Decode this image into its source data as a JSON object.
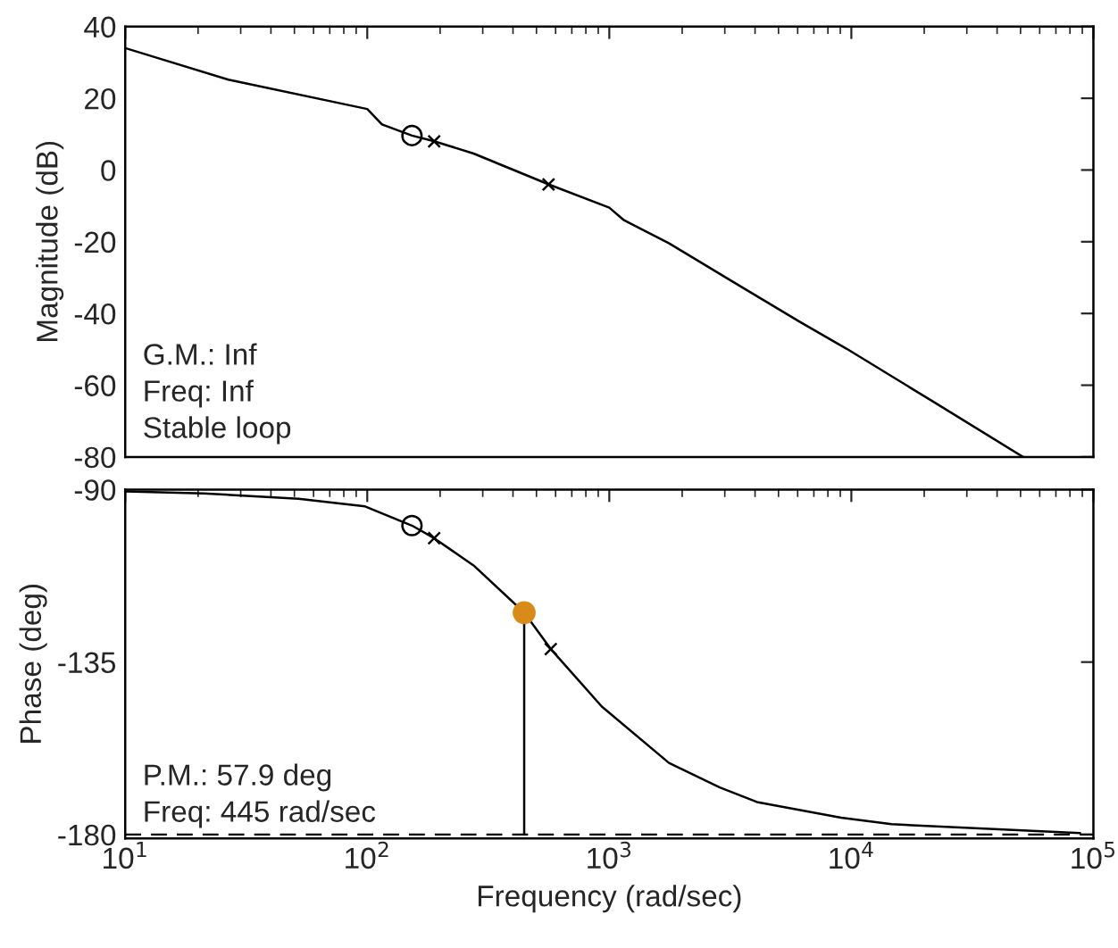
{
  "chart_data": [
    {
      "type": "line",
      "ylabel": "Magnitude (dB)",
      "log": "x",
      "xlim": [
        10,
        100000
      ],
      "ylim": [
        -80,
        40
      ],
      "xticks": [
        10,
        100,
        1000,
        10000,
        100000
      ],
      "yticks": [
        -80,
        -60,
        -40,
        -20,
        0,
        20,
        40
      ],
      "tick_labels": "y",
      "grid": false,
      "legend": false,
      "annotations": [
        "G.M.: Inf",
        "Freq: Inf",
        "Stable loop"
      ],
      "series": [
        {
          "color": "#000000",
          "marker": "none",
          "line_style": "solid",
          "x": [
            10,
            26.7,
            100,
            115,
            153,
            189,
            275,
            561,
            1000,
            1150,
            1760,
            3320,
            6110,
            9540,
            22300,
            51200
          ],
          "values": [
            34,
            25.2,
            17,
            12.7,
            9.6,
            8,
            4.6,
            -4,
            -10.5,
            -14,
            -20.4,
            -31.6,
            -42.3,
            -49.8,
            -65,
            -80
          ]
        },
        {
          "type": "scatter",
          "color": "#000000",
          "marker": "circle",
          "x": [
            153
          ],
          "values": [
            9.6
          ]
        },
        {
          "type": "scatter",
          "color": "#000000",
          "marker": "cross",
          "x": [
            189,
            561
          ],
          "values": [
            8,
            -4
          ]
        }
      ]
    },
    {
      "type": "line",
      "xlabel": "Frequency (rad/sec)",
      "ylabel": "Phase (deg)",
      "log": "x",
      "xlim": [
        10,
        100000
      ],
      "ylim": [
        -181,
        -90
      ],
      "xticks": [
        {
          "value": 10,
          "label": "10$^{1}$"
        },
        {
          "value": 100,
          "label": "10$^{2}$"
        },
        {
          "value": 1000,
          "label": "10$^{3}$"
        },
        {
          "value": 10000,
          "label": "10$^{4}$"
        },
        {
          "value": 100000,
          "label": "10$^{5}$"
        }
      ],
      "yticks": [
        -180,
        -135,
        -90
      ],
      "grid": false,
      "legend": false,
      "annotations": [
        "P.M.: 57.9 deg",
        "Freq: 445 rad/sec"
      ],
      "ref_lines": [
        {
          "axis": "y",
          "value": -180,
          "label": null,
          "color": "#000000",
          "line_style": "dashed"
        }
      ],
      "series": [
        {
          "color": "#000000",
          "marker": "none",
          "line_style": "solid",
          "x": [
            10,
            21,
            52,
            98,
            153,
            189,
            275,
            445,
            573,
            931,
            1763,
            2860,
            4070,
            9060,
            14660,
            88100
          ],
          "values": [
            -90.5,
            -91,
            -92.4,
            -94.4,
            -99.4,
            -102.7,
            -109.8,
            -122.1,
            -131.6,
            -146.6,
            -161.3,
            -167.7,
            -171.5,
            -175.6,
            -177.3,
            -179.6
          ]
        },
        {
          "type": "scatter",
          "color": "#000000",
          "marker": "circle",
          "x": [
            153
          ],
          "values": [
            -99.4
          ]
        },
        {
          "type": "scatter",
          "color": "#000000",
          "marker": "cross",
          "x": [
            189,
            573
          ],
          "values": [
            -102.7,
            -131.6
          ]
        },
        {
          "type": "line",
          "color": "#000000",
          "marker": "none",
          "line_style": "solid",
          "x": [
            445,
            445
          ],
          "values": [
            -122.1,
            -180
          ]
        },
        {
          "type": "scatter",
          "color": "#d98b1a",
          "marker": "circle",
          "x": [
            445
          ],
          "values": [
            -122.1
          ]
        }
      ]
    }
  ]
}
